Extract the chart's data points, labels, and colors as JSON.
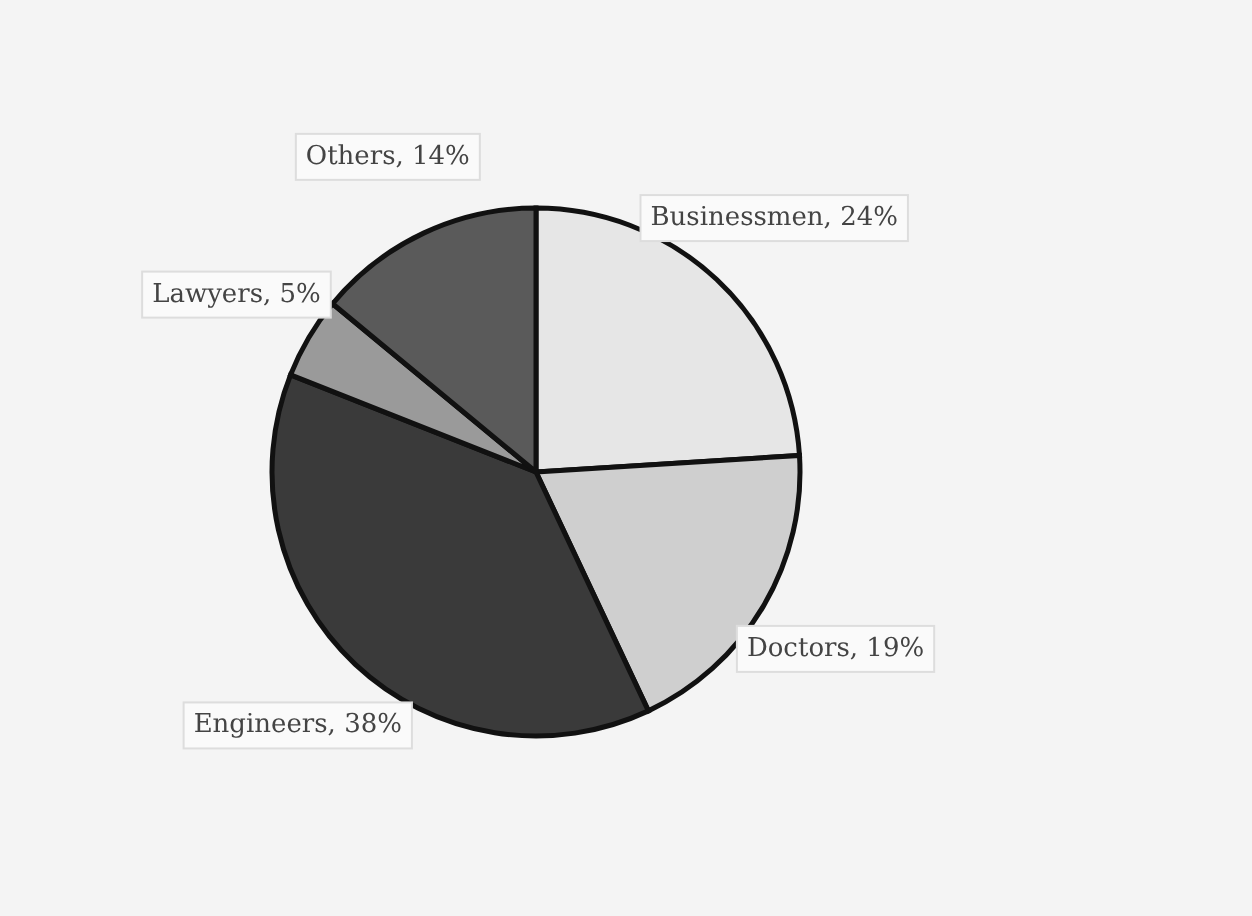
{
  "chart_data": {
    "type": "pie",
    "categories": [
      "Businessmen",
      "Doctors",
      "Engineers",
      "Lawyers",
      "Others"
    ],
    "values": [
      24,
      19,
      38,
      5,
      14
    ],
    "value_labels": [
      "24%",
      "19%",
      "38%",
      "5%",
      "14%"
    ],
    "colors": [
      "#e6e6e6",
      "#cfcfcf",
      "#3a3a3a",
      "#9a9a9a",
      "#5a5a5a"
    ]
  }
}
